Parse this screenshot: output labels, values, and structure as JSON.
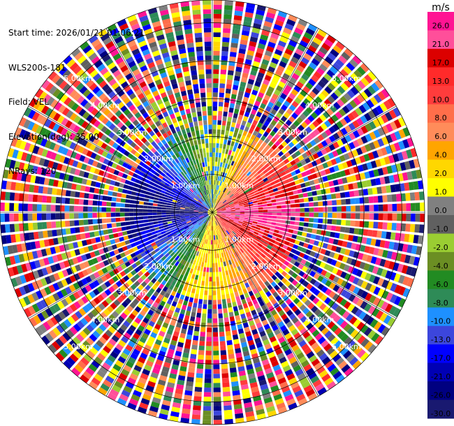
{
  "info": {
    "start_time": "Start time: 2026/01/21 01:06:21",
    "site": "WLS200s-181",
    "field": "Field: VEL",
    "elevation": "Elevation(deg): 35.00",
    "nrays": "NRays: 120"
  },
  "chart_data": {
    "type": "ppi",
    "field": "VEL",
    "units": "m/s",
    "nrays": 120,
    "elevation_deg": 35.0,
    "range_rings_km": [
      1.0,
      2.0,
      3.0,
      4.0,
      5.0
    ],
    "range_ring_labels": [
      "1.00km",
      "2.00km",
      "3.00km",
      "4.00km",
      "5.00km"
    ],
    "max_range_km": 5.6,
    "colorbar": {
      "title": "m/s",
      "ticks": [
        "26.0",
        "21.0",
        "17.0",
        "13.0",
        "10.0",
        "8.0",
        "6.0",
        "4.0",
        "2.0",
        "1.0",
        "0.0",
        "-1.0",
        "-2.0",
        "-4.0",
        "-6.0",
        "-8.0",
        "-10.0",
        "-13.0",
        "-17.0",
        "-21.0",
        "-26.0",
        "-30.0"
      ],
      "colors": [
        "#ff1493",
        "#ff4f9a",
        "#dc0000",
        "#ff2a2a",
        "#ff3c3c",
        "#ff6e4a",
        "#ff8c5a",
        "#ffa500",
        "#ffd700",
        "#ffff00",
        "#808080",
        "#606060",
        "#9acd32",
        "#6b8e23",
        "#228b22",
        "#2e8b57",
        "#1e90ff",
        "#3c46dc",
        "#0000ff",
        "#0000b4",
        "#000080",
        "#191970"
      ]
    },
    "clean_region": {
      "max_range_km": 2.4,
      "positive_color_center_deg": 95,
      "negative_color_center_deg": 275,
      "pattern": "dipole: approaching (negative, blue) on left/west, receding (positive, pink/red) on right/east"
    }
  }
}
